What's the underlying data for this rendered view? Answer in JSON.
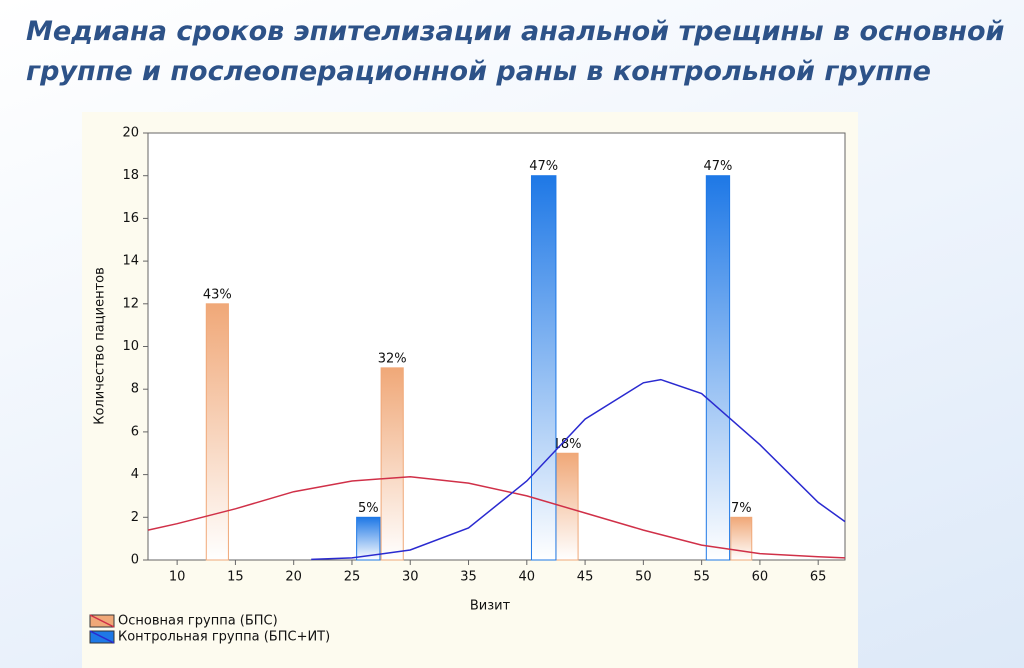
{
  "chart_data": {
    "type": "histogram",
    "title": "Медиана сроков эпителизации анальной трещины в основной группе и послеоперационной раны в контрольной группе",
    "x_label": "Визит",
    "y_label": "Количество пациентов",
    "xlim": [
      7.5,
      67.3
    ],
    "xticks": [
      10,
      15,
      20,
      25,
      30,
      35,
      40,
      45,
      50,
      55,
      60,
      65
    ],
    "ylim": [
      0,
      20
    ],
    "yticks": [
      0,
      2,
      4,
      6,
      8,
      10,
      12,
      14,
      16,
      18,
      20
    ],
    "grid": false,
    "series": [
      {
        "name": "Основная группа (БПС)",
        "color": "#f0a878",
        "curve_color": "#d03048",
        "x_start": [
          12.5,
          27.5,
          42.5,
          57.5
        ],
        "x_end": [
          14.4,
          29.4,
          44.4,
          59.3
        ],
        "values": [
          12,
          9,
          5,
          2
        ],
        "value_labels": [
          "43%",
          "32%",
          "18%",
          "7%"
        ],
        "curve_x": [
          7.5,
          10,
          15,
          20,
          25,
          30,
          35,
          40,
          45,
          50,
          55,
          60,
          65,
          67.3
        ],
        "curve_values": [
          1.4,
          1.7,
          2.4,
          3.2,
          3.7,
          3.9,
          3.6,
          3.0,
          2.2,
          1.4,
          0.7,
          0.3,
          0.15,
          0.1
        ]
      },
      {
        "name": "Контрольная группа (БПС+ИТ)",
        "color": "#1e78e6",
        "curve_color": "#2a2ad0",
        "x_start": [
          25.4,
          40.4,
          55.4
        ],
        "x_end": [
          27.4,
          42.5,
          57.4
        ],
        "values": [
          2,
          18,
          18
        ],
        "value_labels": [
          "5%",
          "47%",
          "47%"
        ],
        "curve_x": [
          21.5,
          25,
          30,
          35,
          40,
          45,
          50,
          51.5,
          55,
          60,
          65,
          67.3
        ],
        "curve_values": [
          0.03,
          0.1,
          0.47,
          1.5,
          3.7,
          6.6,
          8.3,
          8.45,
          7.8,
          5.4,
          2.7,
          1.8
        ]
      }
    ]
  }
}
